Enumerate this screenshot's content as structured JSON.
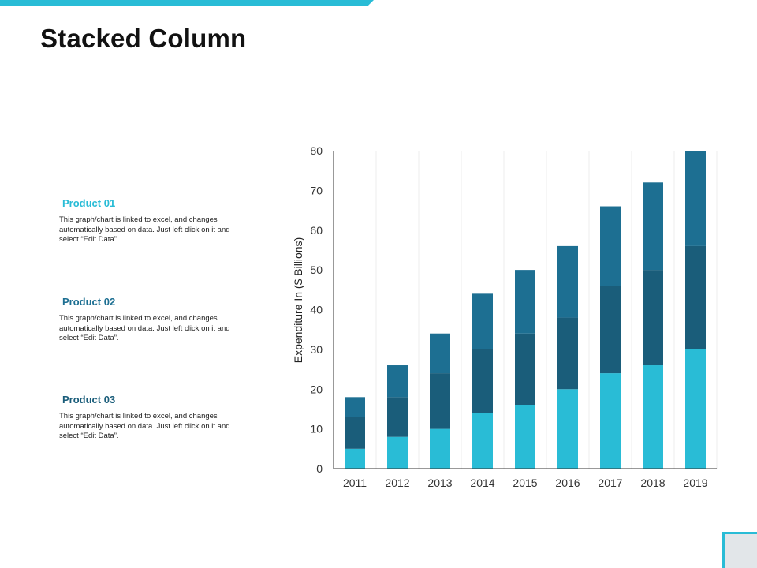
{
  "slide": {
    "title": "Stacked Column"
  },
  "legend": [
    {
      "name": "Product 01",
      "text": "This graph/chart is linked to excel, and changes automatically based on data. Just left click on it and select “Edit Data”."
    },
    {
      "name": "Product 02",
      "text": "This graph/chart is linked to excel, and changes automatically based on data. Just left click on it and select “Edit Data”."
    },
    {
      "name": "Product 03",
      "text": "This graph/chart is linked to excel, and changes automatically based on data. Just left click on it and select “Edit Data”."
    }
  ],
  "colors": {
    "accent": "#29bcd6",
    "series": [
      "#29bcd6",
      "#1a5d7a",
      "#1d6f92"
    ]
  },
  "chart_data": {
    "type": "bar",
    "stacked": true,
    "categories": [
      "2011",
      "2012",
      "2013",
      "2014",
      "2015",
      "2016",
      "2017",
      "2018",
      "2019"
    ],
    "series": [
      {
        "values": [
          5,
          8,
          10,
          14,
          16,
          20,
          24,
          26,
          30
        ]
      },
      {
        "values": [
          8,
          10,
          14,
          16,
          18,
          18,
          22,
          24,
          26
        ]
      },
      {
        "values": [
          5,
          8,
          10,
          14,
          16,
          18,
          20,
          22,
          24
        ]
      }
    ],
    "ylabel": "Expenditure In ($ Billions)",
    "ylim": [
      0,
      80
    ],
    "yticks": [
      0,
      10,
      20,
      30,
      40,
      50,
      60,
      70,
      80
    ],
    "grid": "vertical"
  }
}
